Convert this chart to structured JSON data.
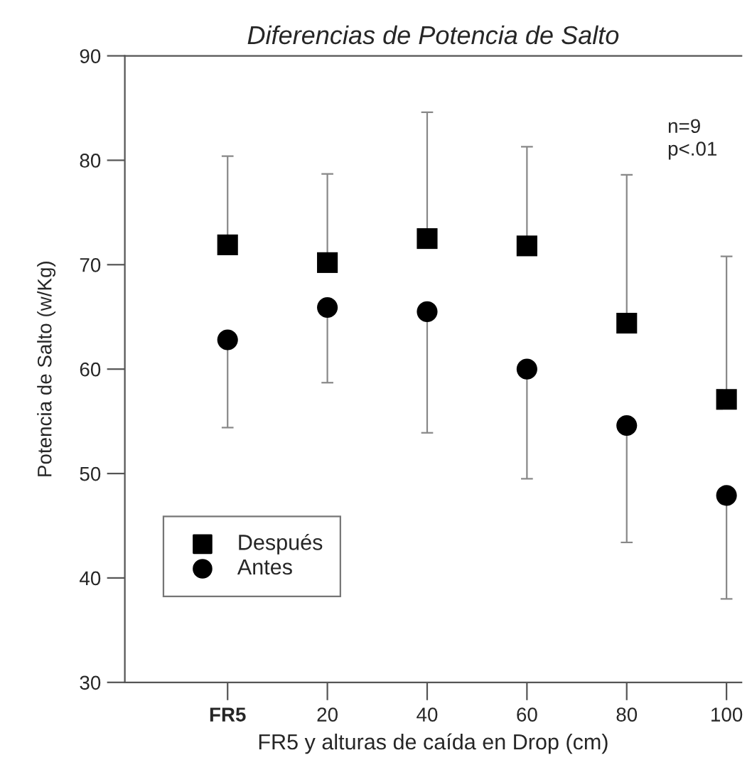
{
  "chart_data": {
    "type": "scatter",
    "title": "Diferencias de Potencia de Salto",
    "xlabel": "FR5 y alturas de caída en Drop (cm)",
    "ylabel": "Potencia de Salto (w/Kg)",
    "categories": [
      "FR5",
      "20",
      "40",
      "60",
      "80",
      "100"
    ],
    "series": [
      {
        "name": "Después",
        "color": "#000000",
        "marker": "square",
        "values": [
          71.9,
          70.2,
          72.5,
          71.8,
          64.4,
          57.1
        ],
        "errors": [
          [
            71.9,
            80.4
          ],
          [
            70.2,
            78.7
          ],
          [
            72.5,
            84.6
          ],
          [
            71.8,
            81.3
          ],
          [
            64.4,
            78.6
          ],
          [
            57.1,
            70.8
          ]
        ]
      },
      {
        "name": "Antes",
        "color": "#000000",
        "marker": "circle",
        "values": [
          62.8,
          65.9,
          65.5,
          60.0,
          54.6,
          47.9
        ],
        "errors": [
          [
            54.4,
            62.8
          ],
          [
            58.7,
            65.9
          ],
          [
            53.9,
            65.5
          ],
          [
            49.5,
            60.0
          ],
          [
            43.4,
            54.6
          ],
          [
            38.0,
            47.9
          ]
        ]
      }
    ],
    "ylim": [
      30,
      90
    ],
    "yticks": [
      30,
      40,
      50,
      60,
      70,
      80,
      90
    ],
    "grid": false,
    "legend": "bottom left",
    "annotations": [
      "n=9\np<.01"
    ]
  }
}
